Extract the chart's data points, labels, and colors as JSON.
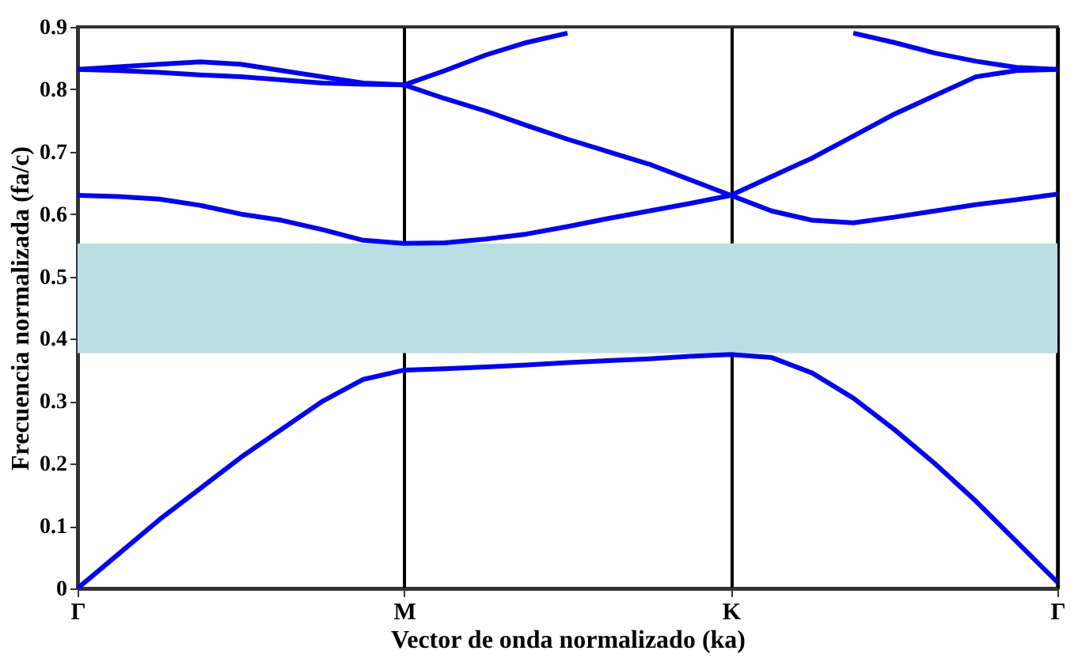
{
  "chart_data": {
    "type": "line",
    "xlabel": "Vector de onda normalizado (ka)",
    "ylabel": "Frecuencia normalizada (fa/c)",
    "categories": [
      "Γ",
      null,
      null,
      null,
      null,
      null,
      null,
      null,
      "M",
      null,
      null,
      null,
      null,
      null,
      null,
      null,
      "K",
      null,
      null,
      null,
      null,
      null,
      null,
      null,
      "Γ"
    ],
    "ylim": [
      0,
      0.9
    ],
    "yticks": [
      0,
      0.1,
      0.2,
      0.3,
      0.4,
      0.5,
      0.6,
      0.7,
      0.8,
      0.9
    ],
    "grid": "x",
    "legend": false,
    "marker": "none",
    "line_style": "solid",
    "bands": [
      {
        "axis": "y",
        "from": 0.377,
        "to": 0.553,
        "color": "#b9dfe2"
      }
    ],
    "series": [
      {
        "color": "#0000ff",
        "values": [
          0,
          0.055,
          0.11,
          0.16,
          0.21,
          0.255,
          0.3,
          0.335,
          0.35,
          0.352,
          0.355,
          0.358,
          0.362,
          0.365,
          0.368,
          0.372,
          0.375,
          0.37,
          0.345,
          0.305,
          0.255,
          0.2,
          0.14,
          0.075,
          0.01
        ]
      },
      {
        "color": "#0000ff",
        "values": [
          0.63,
          0.628,
          0.624,
          0.614,
          0.6,
          0.59,
          0.575,
          0.558,
          0.553,
          0.554,
          0.56,
          0.568,
          0.58,
          0.593,
          0.605,
          0.617,
          0.63,
          0.605,
          0.59,
          0.586,
          0.595,
          0.605,
          0.615,
          0.623,
          0.632
        ]
      },
      {
        "color": "#0000ff",
        "values": [
          0.832,
          0.83,
          0.827,
          0.823,
          0.82,
          0.815,
          0.81,
          0.808,
          0.807,
          0.785,
          0.765,
          0.742,
          0.72,
          0.7,
          0.68,
          0.655,
          0.63,
          0.66,
          0.69,
          0.725,
          0.76,
          0.79,
          0.82,
          0.83,
          0.832
        ]
      },
      {
        "color": "#0000ff",
        "values": [
          0.832,
          0.836,
          0.84,
          0.844,
          0.84,
          0.83,
          0.82,
          0.81,
          0.807,
          0.83,
          0.855,
          0.875,
          0.89,
          null,
          null,
          null,
          null,
          null,
          null,
          0.89,
          0.875,
          0.858,
          0.845,
          0.835,
          0.832
        ]
      }
    ]
  }
}
